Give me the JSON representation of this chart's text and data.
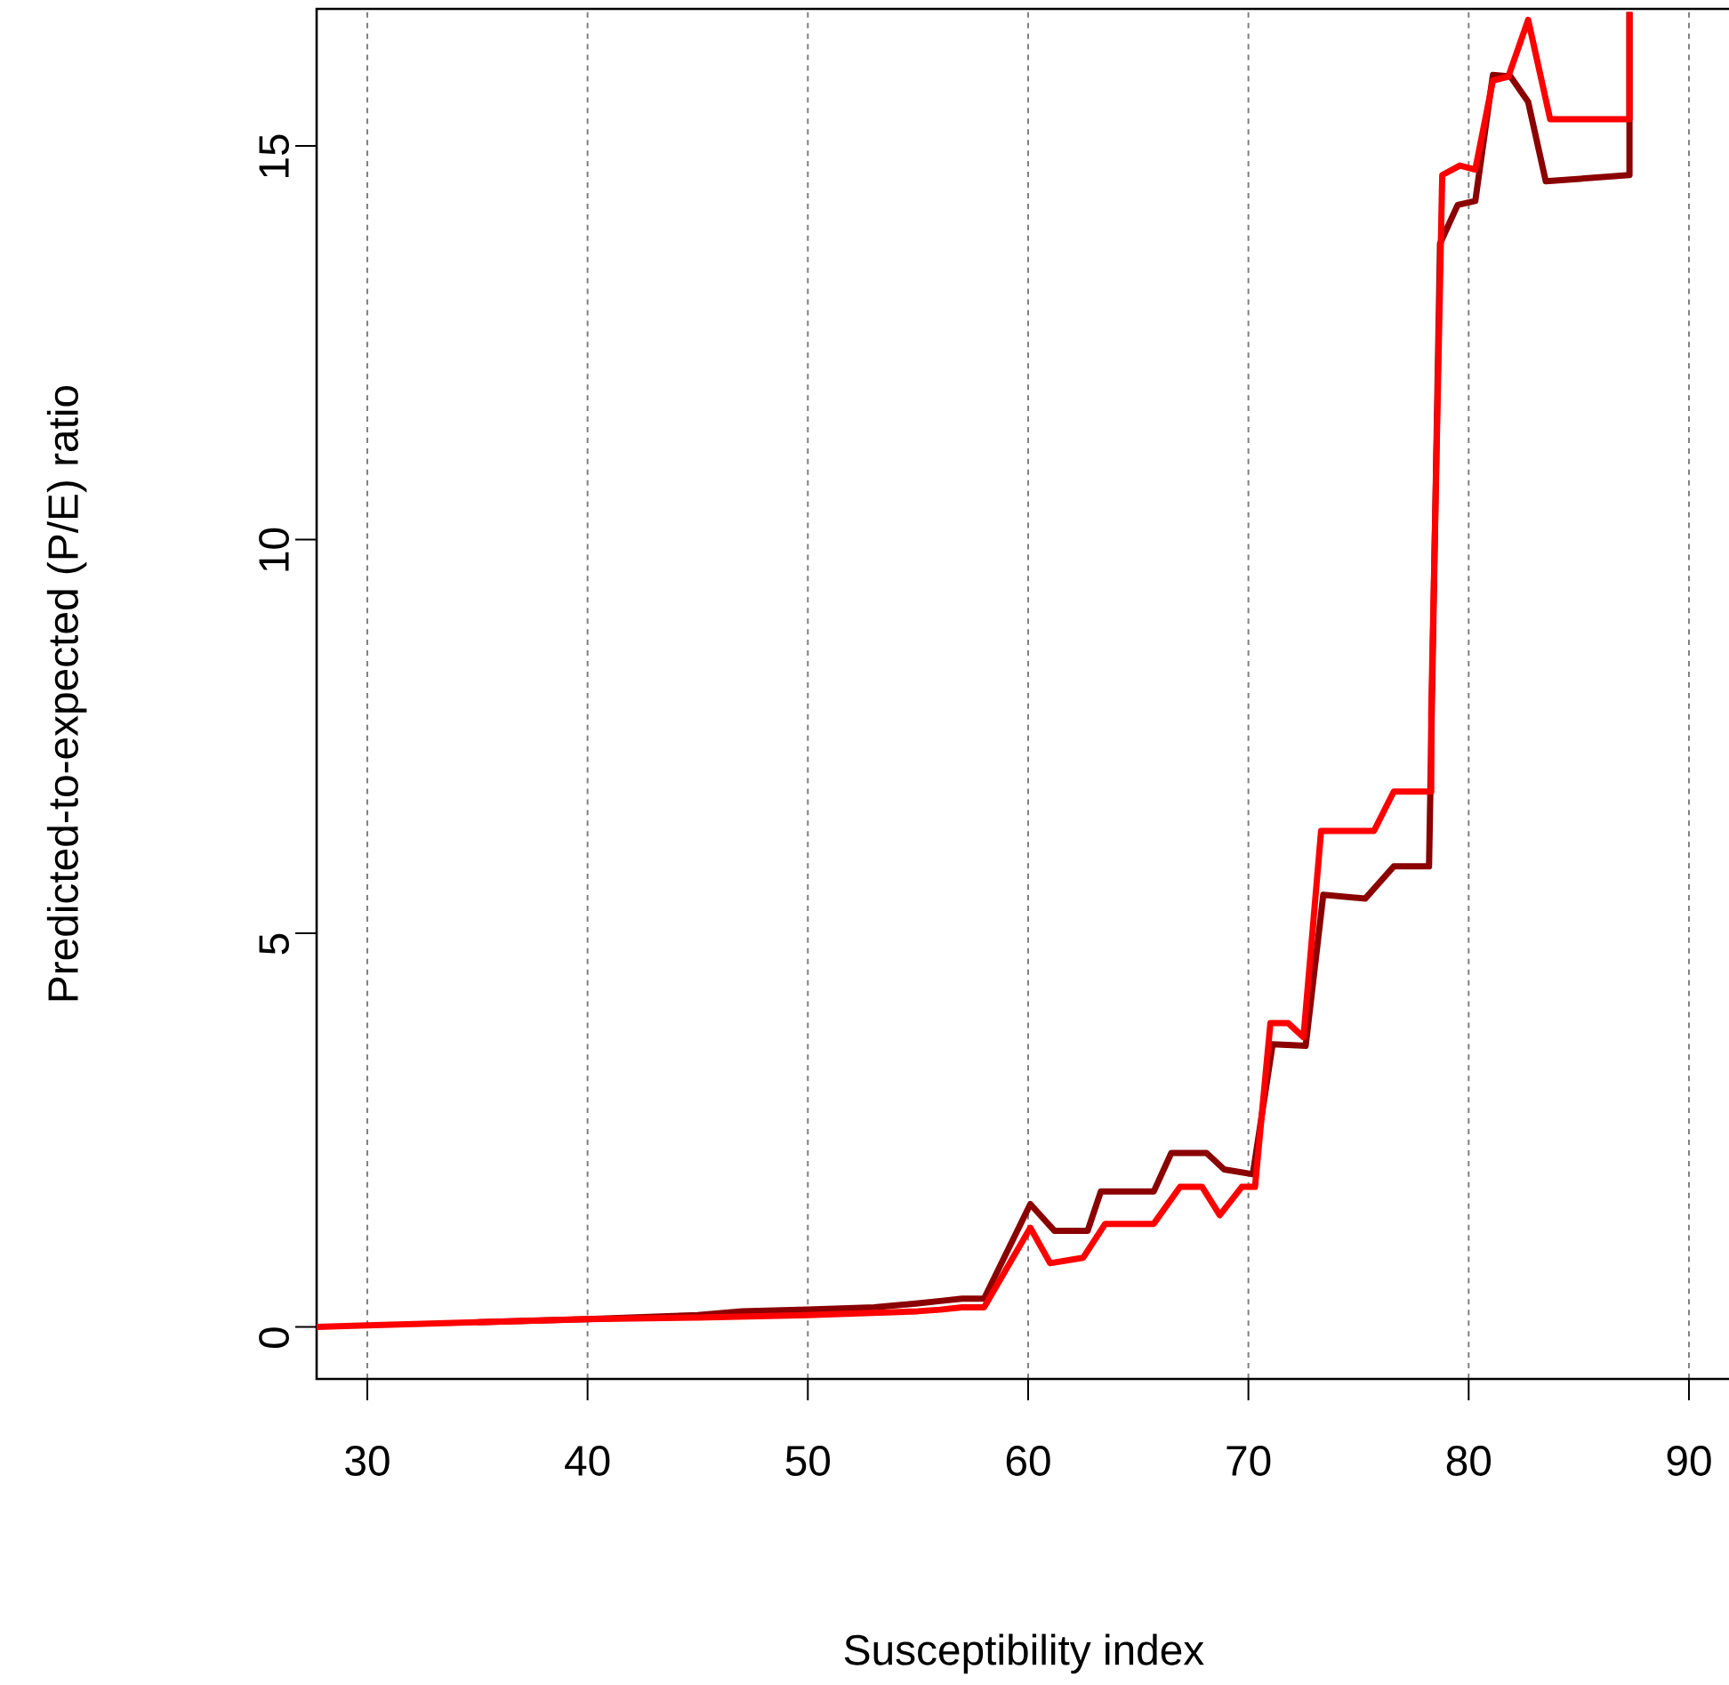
{
  "chart_data": {
    "type": "line",
    "xlabel": "Susceptibility index",
    "ylabel": "Predicted-to-expected (P/E) ratio",
    "xlim": [
      27.7,
      91.9
    ],
    "ylim": [
      -0.66,
      16.74
    ],
    "xticks": [
      30,
      40,
      50,
      60,
      70,
      80,
      90
    ],
    "yticks": [
      0,
      5,
      10,
      15
    ],
    "grid": "x",
    "marker": "none",
    "line_style": "solid",
    "series": [
      {
        "color": "#8b0000",
        "x": [
          35,
          40,
          45,
          47,
          50,
          53,
          55,
          56,
          57.0,
          58.0,
          60.1,
          61.2,
          62.7,
          63.3,
          65.7,
          66.5,
          68.1,
          68.9,
          70.2,
          71.1,
          72.6,
          73.4,
          75.3,
          76.6,
          78.2,
          78.7,
          79.5,
          80.3,
          81.1,
          81.9,
          82.7,
          83.5,
          87.3,
          87.3
        ],
        "values": [
          0.06,
          0.1,
          0.15,
          0.2,
          0.22,
          0.25,
          0.3,
          0.33,
          0.36,
          0.36,
          1.56,
          1.22,
          1.22,
          1.72,
          1.72,
          2.21,
          2.21,
          2.0,
          1.94,
          3.59,
          3.57,
          5.49,
          5.44,
          5.85,
          5.85,
          13.76,
          14.25,
          14.3,
          15.9,
          15.88,
          15.56,
          14.55,
          14.63,
          16.7
        ]
      },
      {
        "color": "#ff0000",
        "x": [
          27.7,
          30,
          35,
          40,
          45,
          50,
          55,
          56,
          57.0,
          58.0,
          60.1,
          61.0,
          62.5,
          63.5,
          65.7,
          66.9,
          67.9,
          68.7,
          69.7,
          70.3,
          71.0,
          71.8,
          72.5,
          73.3,
          75.7,
          76.6,
          78.3,
          78.3,
          78.8,
          79.6,
          80.3,
          81.1,
          81.8,
          82.7,
          83.7,
          87.3,
          87.3
        ],
        "values": [
          0,
          0.02,
          0.06,
          0.1,
          0.12,
          0.15,
          0.2,
          0.22,
          0.25,
          0.25,
          1.26,
          0.81,
          0.88,
          1.31,
          1.31,
          1.78,
          1.78,
          1.42,
          1.78,
          1.78,
          3.86,
          3.86,
          3.68,
          6.3,
          6.3,
          6.8,
          6.8,
          7.8,
          14.63,
          14.75,
          14.7,
          15.83,
          15.88,
          16.6,
          15.34,
          15.34,
          16.7
        ]
      }
    ]
  }
}
